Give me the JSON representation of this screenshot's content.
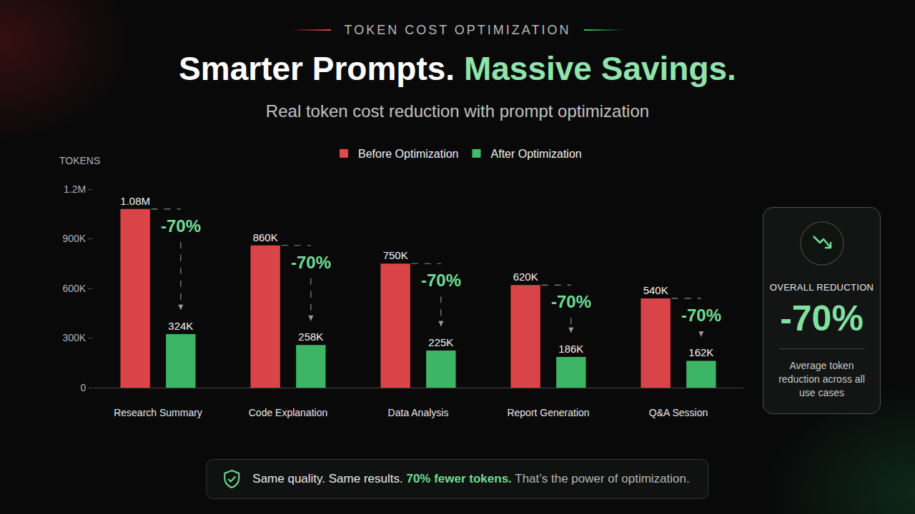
{
  "header": {
    "kicker": "TOKEN COST OPTIMIZATION",
    "title": [
      "Smarter Prompts.",
      "Massive Savings."
    ],
    "subtitle": "Real token cost reduction with prompt optimization"
  },
  "chart_data": {
    "type": "bar",
    "ylabel": "TOKENS",
    "categories": [
      "Research Summary",
      "Code Explanation",
      "Data Analysis",
      "Report Generation",
      "Q&A Session"
    ],
    "series": [
      {
        "name": "Before Optimization",
        "color": "#e5484d",
        "values": [
          1080000,
          860000,
          750000,
          620000,
          540000
        ],
        "value_labels": [
          "1.08M",
          "860K",
          "750K",
          "620K",
          "540K"
        ]
      },
      {
        "name": "After Optimization",
        "color": "#3fbf6a",
        "values": [
          324000,
          258000,
          225000,
          186000,
          162000
        ],
        "value_labels": [
          "324K",
          "258K",
          "225K",
          "186K",
          "162K"
        ]
      }
    ],
    "annotations": [
      "-70%",
      "-70%",
      "-70%",
      "-70%",
      "-70%"
    ],
    "ylim": [
      0,
      1200000
    ],
    "yticks": [
      0,
      {
        "value": 300000,
        "label": "300K"
      },
      {
        "value": 600000,
        "label": "600K"
      },
      {
        "value": 900000,
        "label": "900K"
      },
      {
        "value": 1200000,
        "label": "1.2M"
      }
    ],
    "grid": false,
    "legend": "top",
    "data_labels": true
  },
  "summary_card": {
    "title": "OVERALL REDUCTION",
    "value": "-70%",
    "caption": "Average token reduction across all use cases"
  },
  "footer": [
    "Same quality. Same results.",
    "70% fewer tokens.",
    "That’s the power of optimization."
  ]
}
